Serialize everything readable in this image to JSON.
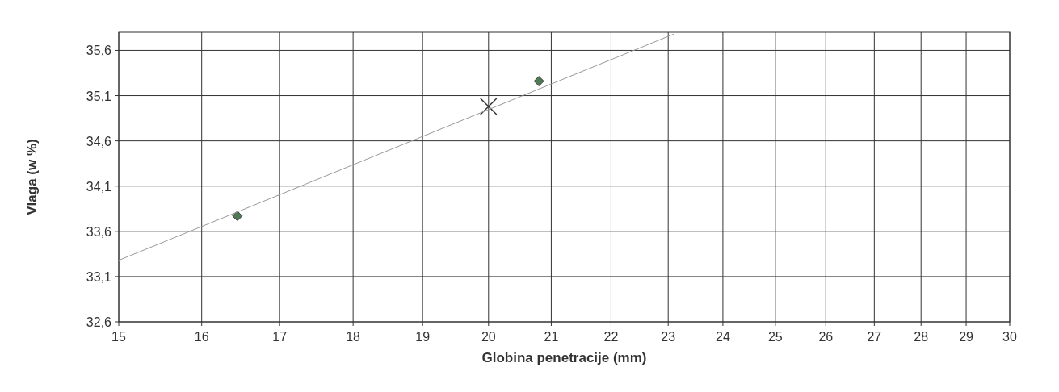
{
  "chart_data": {
    "type": "scatter",
    "xlabel": "Globina penetracije (mm)",
    "ylabel": "Vlaga (w %)",
    "log": "x",
    "grid": true,
    "xlim": [
      15,
      30
    ],
    "xticks": [
      15,
      16,
      17,
      18,
      19,
      20,
      21,
      22,
      23,
      24,
      25,
      26,
      27,
      28,
      29,
      30
    ],
    "ylim": [
      32.6,
      35.8
    ],
    "yticks": [
      {
        "value": 32.6,
        "label": "32,6"
      },
      {
        "value": 33.1,
        "label": "33,1"
      },
      {
        "value": 33.6,
        "label": "33,6"
      },
      {
        "value": 34.1,
        "label": "34,1"
      },
      {
        "value": 34.6,
        "label": "34,6"
      },
      {
        "value": 35.1,
        "label": "35,1"
      },
      {
        "value": 35.6,
        "label": "35,6"
      }
    ],
    "series": [
      {
        "color": "#4f7a55",
        "marker": "diamond",
        "x": [
          16.45,
          20.8
        ],
        "values": [
          33.77,
          35.26
        ]
      },
      {
        "color": "#333333",
        "marker": "cross",
        "x": [
          20
        ],
        "values": [
          34.98
        ]
      },
      {
        "type": "line",
        "color": "#999999",
        "marker": "none",
        "line_style": "solid",
        "x": [
          15,
          23.1
        ],
        "values": [
          33.28,
          35.78
        ]
      }
    ]
  }
}
